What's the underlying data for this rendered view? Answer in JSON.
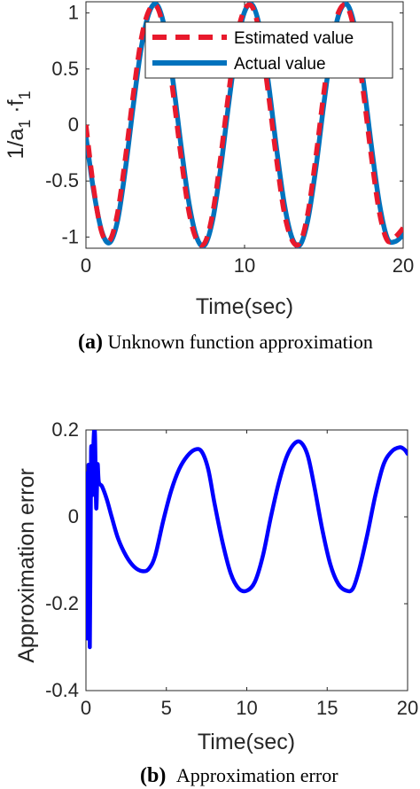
{
  "chart_data": [
    {
      "type": "line",
      "panel_label": "(a)",
      "caption": "Unknown function approximation",
      "xlabel": "Time(sec)",
      "ylabel_parts": [
        "1/a",
        "1",
        " ·f",
        "1"
      ],
      "xlim": [
        0,
        20
      ],
      "ylim": [
        -1.1,
        1.1
      ],
      "xticks": [
        "0",
        "10",
        "20"
      ],
      "yticks": [
        "1",
        "0.5",
        "0",
        "-0.5",
        "-1"
      ],
      "grid": false,
      "legend_position": "top-right",
      "series": [
        {
          "name": "Estimated value",
          "color": "#e8192c",
          "style": "dashed",
          "x": [
            0,
            0.5,
            1.0,
            1.5,
            2.0,
            2.5,
            3.0,
            3.5,
            4.0,
            4.5,
            5.0,
            5.5,
            6.0,
            6.5,
            7.0,
            7.5,
            8.0,
            8.5,
            9.0,
            9.5,
            10.0,
            10.5,
            11.0,
            11.5,
            12.0,
            12.5,
            13.0,
            13.5,
            14.0,
            14.5,
            15.0,
            15.5,
            16.0,
            16.5,
            17.0,
            17.5,
            18.0,
            18.5,
            19.0,
            19.5,
            20.0
          ],
          "y": [
            0.0,
            -0.58,
            -0.96,
            -1.03,
            -0.78,
            -0.28,
            0.29,
            0.78,
            1.03,
            1.05,
            0.78,
            0.28,
            -0.29,
            -0.78,
            -1.03,
            -1.05,
            -0.78,
            -0.28,
            0.29,
            0.78,
            1.03,
            1.05,
            0.78,
            0.28,
            -0.29,
            -0.78,
            -1.03,
            -1.05,
            -0.78,
            -0.28,
            0.29,
            0.78,
            1.03,
            1.05,
            0.78,
            0.28,
            -0.29,
            -0.78,
            -1.03,
            -1.0,
            -0.92
          ]
        },
        {
          "name": "Actual value",
          "color": "#0072bd",
          "style": "solid",
          "x": [
            0,
            0.5,
            1.0,
            1.5,
            2.0,
            2.5,
            3.0,
            3.5,
            4.0,
            4.5,
            5.0,
            5.5,
            6.0,
            6.5,
            7.0,
            7.5,
            8.0,
            8.5,
            9.0,
            9.5,
            10.0,
            10.5,
            11.0,
            11.5,
            12.0,
            12.5,
            13.0,
            13.5,
            14.0,
            14.5,
            15.0,
            15.5,
            16.0,
            16.5,
            17.0,
            17.5,
            18.0,
            18.5,
            19.0,
            19.5,
            20.0
          ],
          "y": [
            -0.1,
            -0.6,
            -0.95,
            -1.05,
            -0.85,
            -0.38,
            0.19,
            0.7,
            1.01,
            1.07,
            0.84,
            0.38,
            -0.19,
            -0.7,
            -1.01,
            -1.07,
            -0.84,
            -0.38,
            0.19,
            0.7,
            1.01,
            1.07,
            0.84,
            0.38,
            -0.19,
            -0.7,
            -1.01,
            -1.07,
            -0.84,
            -0.38,
            0.19,
            0.7,
            1.01,
            1.07,
            0.84,
            0.38,
            -0.19,
            -0.7,
            -1.01,
            -1.04,
            -0.98
          ]
        }
      ]
    },
    {
      "type": "line",
      "panel_label": "(b)",
      "caption": "Approximation error",
      "xlabel": "Time(sec)",
      "ylabel": "Approximation error",
      "xlim": [
        0,
        20
      ],
      "ylim": [
        -0.4,
        0.2
      ],
      "xticks": [
        "0",
        "5",
        "10",
        "15",
        "20"
      ],
      "yticks": [
        "0.2",
        "0",
        "-0.2",
        "-0.4"
      ],
      "grid": false,
      "series": [
        {
          "color": "#0000ff",
          "x": [
            0.0,
            0.08,
            0.16,
            0.24,
            0.32,
            0.4,
            0.48,
            0.56,
            0.64,
            0.72,
            0.8,
            1.0,
            1.3,
            1.6,
            2.0,
            2.5,
            3.0,
            3.5,
            3.9,
            4.3,
            4.8,
            5.3,
            5.8,
            6.3,
            6.8,
            7.2,
            7.6,
            8.0,
            8.5,
            9.0,
            9.5,
            10.0,
            10.5,
            11.0,
            11.5,
            12.0,
            12.5,
            13.0,
            13.4,
            13.8,
            14.2,
            14.7,
            15.2,
            15.7,
            16.2,
            16.6,
            17.0,
            17.5,
            18.0,
            18.5,
            19.0,
            19.5,
            19.8,
            20.0
          ],
          "y": [
            0.1,
            -0.28,
            0.12,
            -0.3,
            0.15,
            0.05,
            0.18,
            0.19,
            0.02,
            0.12,
            0.08,
            0.07,
            0.04,
            0.0,
            -0.05,
            -0.09,
            -0.115,
            -0.125,
            -0.12,
            -0.09,
            -0.01,
            0.06,
            0.11,
            0.14,
            0.155,
            0.15,
            0.11,
            0.03,
            -0.06,
            -0.13,
            -0.165,
            -0.17,
            -0.15,
            -0.09,
            0.0,
            0.08,
            0.14,
            0.17,
            0.17,
            0.14,
            0.07,
            -0.03,
            -0.11,
            -0.155,
            -0.17,
            -0.165,
            -0.12,
            -0.04,
            0.05,
            0.12,
            0.15,
            0.16,
            0.155,
            0.145
          ]
        }
      ]
    }
  ]
}
